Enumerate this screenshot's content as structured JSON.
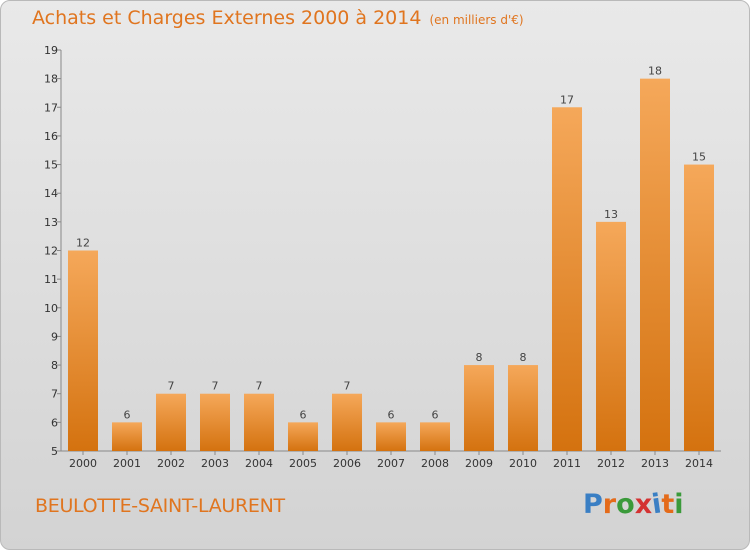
{
  "title": "Achats et Charges Externes 2000 à 2014",
  "unit_note": "(en milliers d'€)",
  "commune": "BEULOTTE-SAINT-LAURENT",
  "logo": {
    "text": "Proxiti",
    "letter_colors": [
      "#3a7fc4",
      "#e46b1a",
      "#3a9a3a",
      "#d43232",
      "#3a7fc4",
      "#e46b1a",
      "#3a9a3a"
    ]
  },
  "colors": {
    "bar_top": "#f5a85a",
    "bar_bottom": "#d4720f",
    "text_accent": "#e0751f"
  },
  "chart_data": {
    "type": "bar",
    "categories": [
      "2000",
      "2001",
      "2002",
      "2003",
      "2004",
      "2005",
      "2006",
      "2007",
      "2008",
      "2009",
      "2010",
      "2011",
      "2012",
      "2013",
      "2014"
    ],
    "values": [
      12,
      6,
      7,
      7,
      7,
      6,
      7,
      6,
      6,
      8,
      8,
      17,
      13,
      18,
      15
    ],
    "data_labels": [
      "12",
      "6",
      "7",
      "7",
      "7",
      "6",
      "7",
      "6",
      "6",
      "8",
      "8",
      "17",
      "13",
      "18",
      "15"
    ],
    "yticks": [
      "5",
      "6",
      "7",
      "8",
      "9",
      "10",
      "11",
      "12",
      "13",
      "14",
      "15",
      "16",
      "17",
      "18",
      "19"
    ],
    "ylim": [
      5,
      19
    ],
    "grid": false,
    "xlabel": "",
    "ylabel": ""
  }
}
